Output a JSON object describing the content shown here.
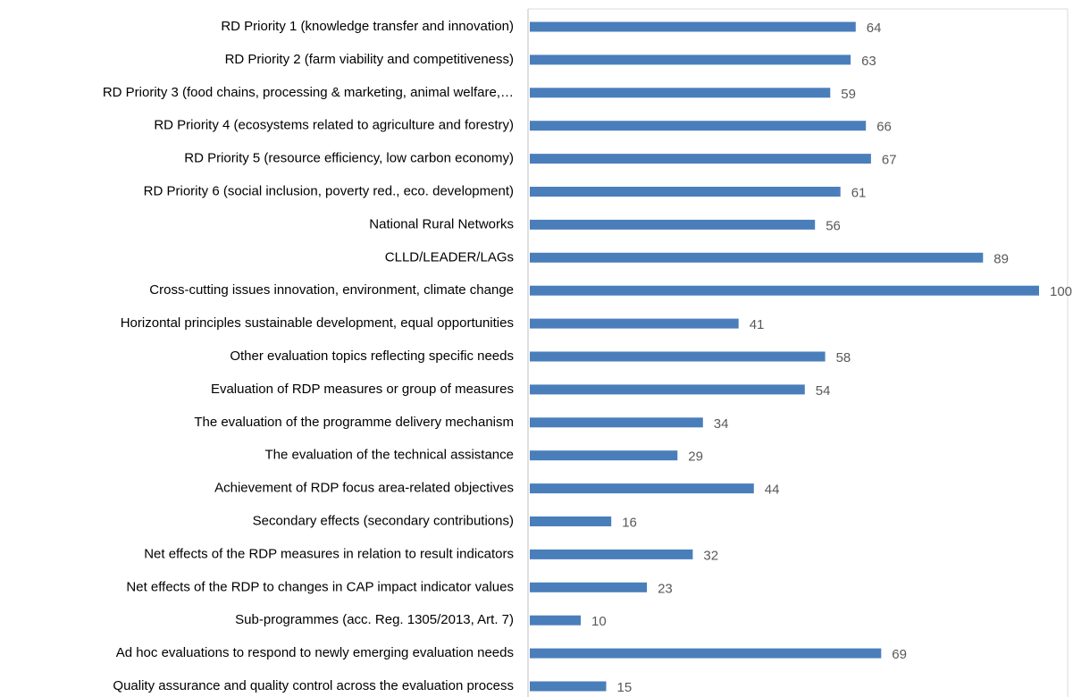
{
  "chart_data": {
    "type": "bar",
    "orientation": "horizontal",
    "categories": [
      "RD Priority 1 (knowledge transfer and innovation)",
      "RD Priority 2 (farm viability and competitiveness)",
      "RD Priority 3 (food chains, processing & marketing, animal welfare,…",
      "RD Priority 4 (ecosystems related to agriculture and forestry)",
      "RD Priority 5 (resource efficiency, low carbon economy)",
      "RD Priority  6 (social inclusion, poverty red., eco. development)",
      "National Rural Networks",
      "CLLD/LEADER/LAGs",
      "Cross-cutting issues innovation, environment, climate change",
      "Horizontal principles sustainable development, equal opportunities",
      "Other evaluation topics reflecting specific needs",
      "Evaluation of RDP measures or group of measures",
      "The evaluation of the programme delivery mechanism",
      "The evaluation of the technical assistance",
      "Achievement of RDP focus area-related objectives",
      "Secondary effects (secondary contributions)",
      "Net effects of the RDP measures in relation to result indicators",
      "Net effects of the RDP to changes in CAP impact indicator values",
      "Sub-programmes (acc. Reg. 1305/2013, Art. 7)",
      "Ad hoc evaluations to respond to newly emerging evaluation needs",
      "Quality assurance and quality control across the evaluation process"
    ],
    "values": [
      64,
      63,
      59,
      66,
      67,
      61,
      56,
      89,
      100,
      41,
      58,
      54,
      34,
      29,
      44,
      16,
      32,
      23,
      10,
      69,
      15
    ],
    "color": "#4a7ebb",
    "xlim": [
      0,
      100
    ]
  }
}
